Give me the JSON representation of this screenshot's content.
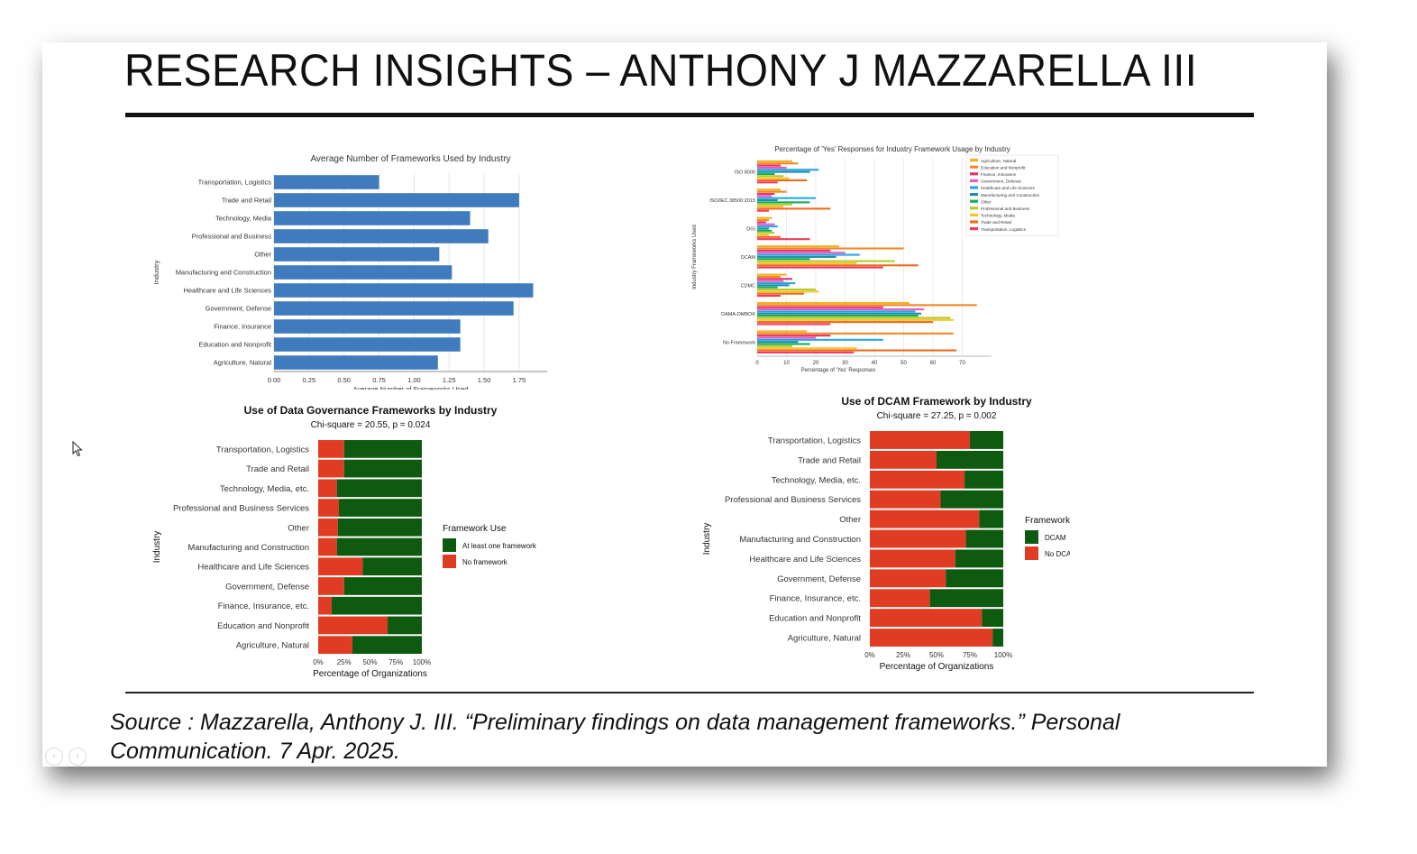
{
  "slide": {
    "title": "RESEARCH INSIGHTS – ANTHONY J MAZZARELLA III",
    "source": "Source : Mazzarella, Anthony J. III. “Preliminary findings on data management frameworks.” Personal Communication. 7 Apr. 2025."
  },
  "colors": {
    "bar_blue": "#3f7bbd",
    "framework_green": "#0e5a10",
    "no_framework_red": "#e03c24"
  },
  "chart_data": [
    {
      "id": "avg-frameworks",
      "type": "bar",
      "orientation": "horizontal",
      "title": "Average Number of Frameworks Used by Industry",
      "xlabel": "Average Number of Frameworks Used",
      "ylabel": "Industry",
      "xlim": [
        0,
        1.95
      ],
      "xticks": [
        "0.00",
        "0.25",
        "0.50",
        "0.75",
        "1.00",
        "1.25",
        "1.50",
        "1.75"
      ],
      "categories": [
        "Transportation, Logistics",
        "Trade and Retail",
        "Technology, Media",
        "Professional and Business",
        "Other",
        "Manufacturing and Construction",
        "Healthcare and Life Sciences",
        "Government, Defense",
        "Finance, Insurance",
        "Education and Nonprofit",
        "Agriculture, Natural"
      ],
      "values": [
        0.75,
        1.75,
        1.4,
        1.53,
        1.18,
        1.27,
        1.85,
        1.71,
        1.33,
        1.33,
        1.17
      ],
      "grid": true
    },
    {
      "id": "yes-responses",
      "type": "bar",
      "orientation": "horizontal-grouped",
      "title": "Percentage of 'Yes' Responses for Industry Framework Usage by Industry",
      "xlabel": "Percentage of 'Yes' Responses",
      "ylabel": "Industry Frameworks Used",
      "xlim": [
        0,
        80
      ],
      "xticks": [
        0,
        10,
        20,
        30,
        40,
        50,
        60,
        70
      ],
      "categories": [
        "ISO 8000",
        "ISO/IEC 38500:2015",
        "DGI",
        "DCAM",
        "CDMC",
        "DAMA-DMBOK",
        "No Framework"
      ],
      "legend_position": "top-right",
      "grid": true,
      "series": [
        {
          "name": "Agriculture, Natural",
          "color": "#f2b01e",
          "values": [
            12,
            8,
            5,
            28,
            10,
            52,
            17
          ]
        },
        {
          "name": "Education and Nonprofit",
          "color": "#f08a24",
          "values": [
            14,
            10,
            4,
            50,
            8,
            75,
            67
          ]
        },
        {
          "name": "Finance, Insurance",
          "color": "#e5356a",
          "values": [
            8,
            6,
            3,
            25,
            12,
            43,
            25
          ]
        },
        {
          "name": "Government, Defense",
          "color": "#e85bc5",
          "values": [
            10,
            5,
            6,
            30,
            9,
            57,
            20
          ]
        },
        {
          "name": "Healthcare and Life Sciences",
          "color": "#28a5e6",
          "values": [
            21,
            20,
            7,
            35,
            13,
            54,
            43
          ]
        },
        {
          "name": "Manufacturing and Construction",
          "color": "#1e8fa8",
          "values": [
            18,
            7,
            4,
            27,
            11,
            56,
            14
          ]
        },
        {
          "name": "Other",
          "color": "#12b05b",
          "values": [
            6,
            18,
            5,
            18,
            7,
            55,
            18
          ]
        },
        {
          "name": "Professional and Business",
          "color": "#b4cc2a",
          "values": [
            9,
            12,
            6,
            47,
            20,
            66,
            12
          ]
        },
        {
          "name": "Technology, Media",
          "color": "#f4c430",
          "values": [
            11,
            9,
            4,
            34,
            21,
            67,
            34
          ]
        },
        {
          "name": "Trade and Retail",
          "color": "#f06a1c",
          "values": [
            17,
            25,
            8,
            55,
            16,
            60,
            68
          ]
        },
        {
          "name": "Transportation, Logistics",
          "color": "#ee3b63",
          "values": [
            7,
            4,
            18,
            43,
            8,
            25,
            33
          ]
        }
      ]
    },
    {
      "id": "dg-frameworks",
      "type": "bar",
      "orientation": "horizontal-stacked-100",
      "title": "Use of Data Governance Frameworks by Industry",
      "subtitle": "Chi-square = 20.55, p = 0.024",
      "xlabel": "Percentage of Organizations",
      "ylabel": "Industry",
      "xticks": [
        "0%",
        "25%",
        "50%",
        "75%",
        "100%"
      ],
      "legend_title": "Framework Use",
      "categories": [
        "Transportation, Logistics",
        "Trade and Retail",
        "Technology, Media, etc.",
        "Professional and Business Services",
        "Other",
        "Manufacturing and Construction",
        "Healthcare and Life Sciences",
        "Government, Defense",
        "Finance, Insurance, etc.",
        "Education and Nonprofit",
        "Agriculture, Natural"
      ],
      "series": [
        {
          "name": "No framework",
          "values": [
            25,
            25,
            18,
            20,
            19,
            18,
            43,
            25,
            13,
            67,
            33
          ]
        },
        {
          "name": "At least one framework",
          "values": [
            75,
            75,
            82,
            80,
            81,
            82,
            57,
            75,
            87,
            33,
            67
          ]
        }
      ]
    },
    {
      "id": "dcam",
      "type": "bar",
      "orientation": "horizontal-stacked-100",
      "title": "Use of DCAM Framework by Industry",
      "subtitle": "Chi-square = 27.25, p = 0.002",
      "xlabel": "Percentage of Organizations",
      "ylabel": "Industry",
      "xticks": [
        "0%",
        "25%",
        "50%",
        "75%",
        "100%"
      ],
      "legend_title": "Framework Use",
      "categories": [
        "Transportation, Logistics",
        "Trade and Retail",
        "Technology, Media, etc.",
        "Professional and Business Services",
        "Other",
        "Manufacturing and Construction",
        "Healthcare and Life Sciences",
        "Government, Defense",
        "Finance, Insurance, etc.",
        "Education and Nonprofit",
        "Agriculture, Natural"
      ],
      "series": [
        {
          "name": "No DCAM",
          "values": [
            75,
            50,
            71,
            53,
            82,
            72,
            64,
            57,
            45,
            84,
            92
          ]
        },
        {
          "name": "DCAM",
          "values": [
            25,
            50,
            29,
            47,
            18,
            28,
            36,
            43,
            55,
            16,
            8
          ]
        }
      ]
    }
  ]
}
